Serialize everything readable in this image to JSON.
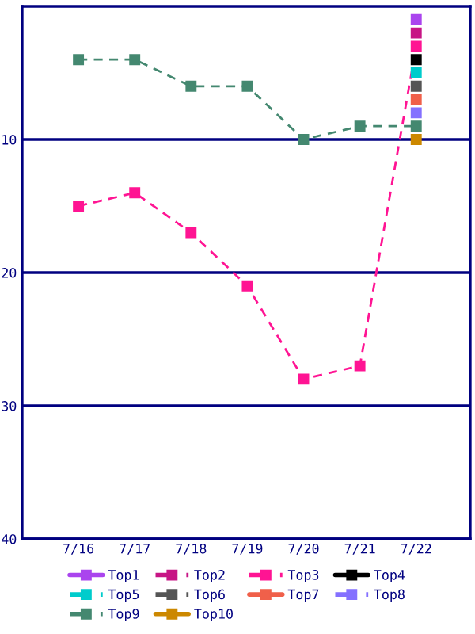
{
  "chart_data": {
    "type": "line",
    "categories": [
      "7/16",
      "7/17",
      "7/18",
      "7/19",
      "7/20",
      "7/21",
      "7/22"
    ],
    "series": [
      {
        "name": "Top1",
        "color": "#aa44ee",
        "line_style": "solid",
        "values": [
          null,
          null,
          null,
          null,
          null,
          null,
          1
        ]
      },
      {
        "name": "Top2",
        "color": "#c71585",
        "line_style": "dashed",
        "values": [
          null,
          null,
          null,
          null,
          null,
          null,
          2
        ]
      },
      {
        "name": "Top3",
        "color": "#ff1493",
        "line_style": "dashed",
        "values": [
          15,
          14,
          17,
          21,
          28,
          27,
          3
        ]
      },
      {
        "name": "Top4",
        "color": "#000000",
        "line_style": "solid",
        "values": [
          null,
          null,
          null,
          null,
          null,
          null,
          4
        ]
      },
      {
        "name": "Top5",
        "color": "#00cccc",
        "line_style": "dashed",
        "values": [
          null,
          null,
          null,
          null,
          null,
          null,
          5
        ]
      },
      {
        "name": "Top6",
        "color": "#555555",
        "line_style": "dashed",
        "values": [
          null,
          null,
          null,
          null,
          null,
          null,
          6
        ]
      },
      {
        "name": "Top7",
        "color": "#f0604a",
        "line_style": "solid",
        "values": [
          null,
          null,
          null,
          null,
          null,
          null,
          7
        ]
      },
      {
        "name": "Top8",
        "color": "#8470ff",
        "line_style": "dashed",
        "values": [
          null,
          null,
          null,
          null,
          null,
          null,
          8
        ]
      },
      {
        "name": "Top9",
        "color": "#448870",
        "line_style": "dashed",
        "values": [
          4,
          4,
          6,
          6,
          10,
          9,
          9
        ]
      },
      {
        "name": "Top10",
        "color": "#cc8800",
        "line_style": "solid",
        "values": [
          null,
          null,
          null,
          null,
          null,
          null,
          10
        ]
      }
    ],
    "ylim": [
      40,
      0
    ],
    "yticks": [
      10,
      20,
      30,
      40
    ],
    "grid": "y",
    "legend": "bottom",
    "marker": "square"
  }
}
